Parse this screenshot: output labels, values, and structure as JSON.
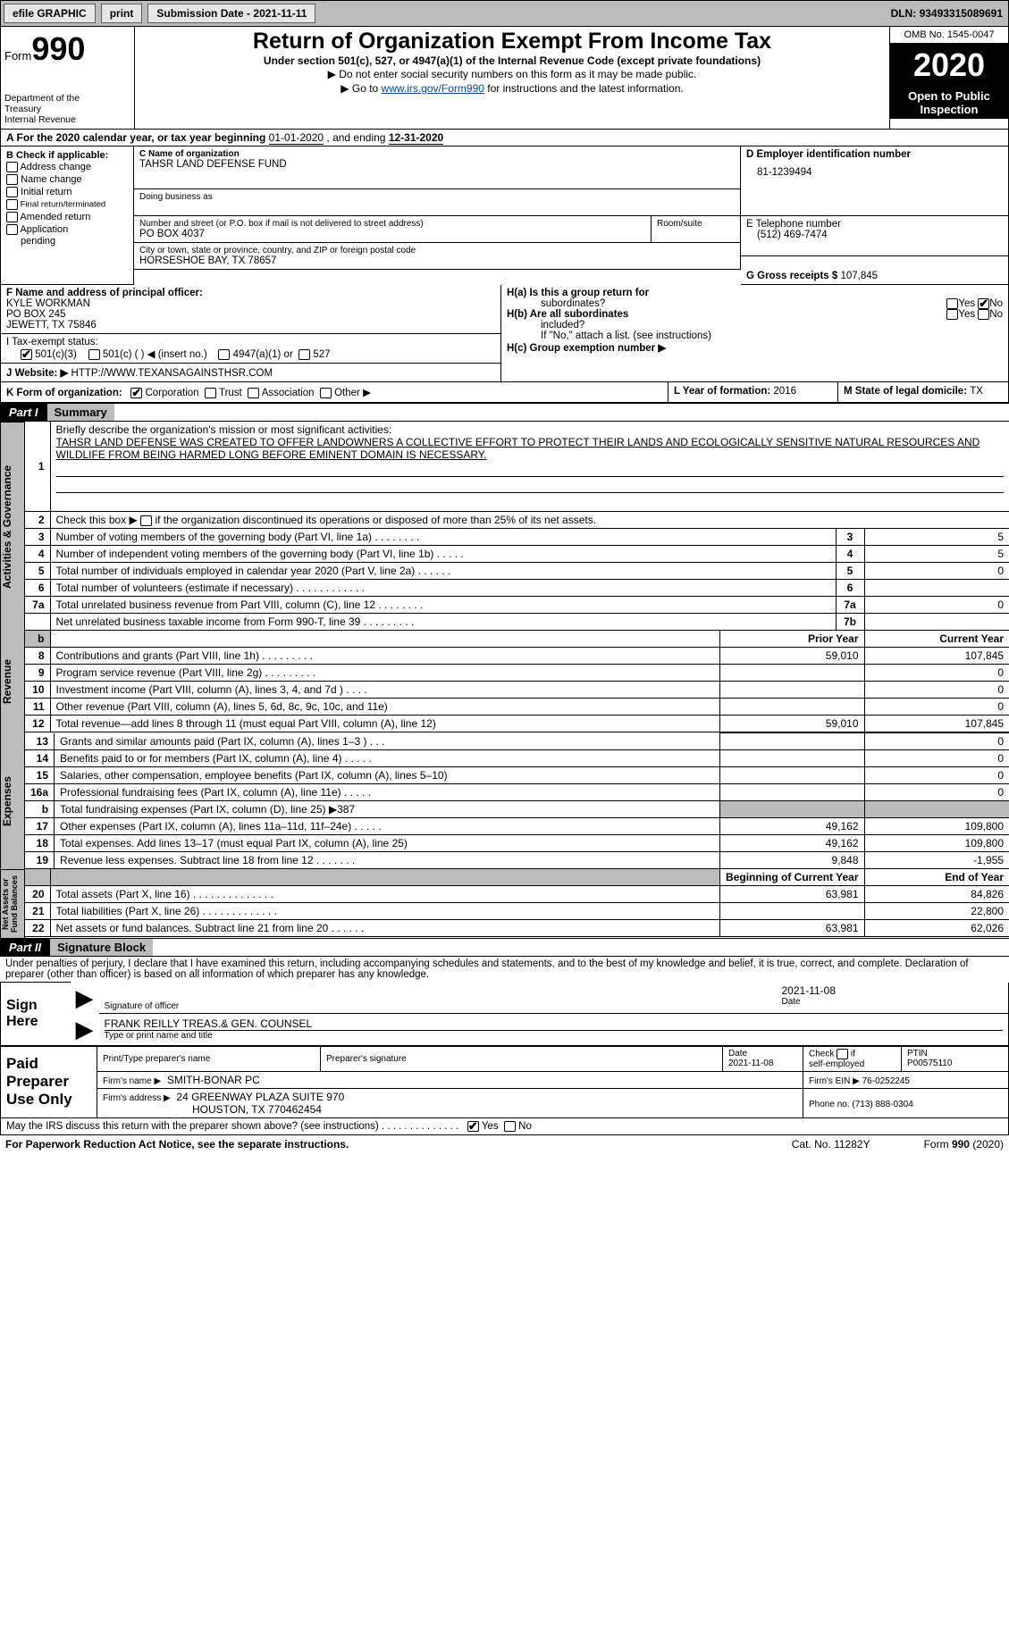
{
  "topbar": {
    "efile": "efile GRAPHIC",
    "print": "print",
    "subdate_lbl": "Submission Date - ",
    "subdate": "2021-11-11",
    "dln_lbl": "DLN: ",
    "dln": "93493315089691"
  },
  "header": {
    "form_pre": "Form",
    "form_num": "990",
    "dept1": "Department of the",
    "dept2": "Treasury",
    "dept3": "Internal Revenue",
    "title": "Return of Organization Exempt From Income Tax",
    "subtitle": "Under section 501(c), 527, or 4947(a)(1) of the Internal Revenue Code (except private foundations)",
    "note1": "▶ Do not enter social security numbers on this form as it may be made public.",
    "note2_pre": "▶ Go to ",
    "note2_link": "www.irs.gov/Form990",
    "note2_post": " for instructions and the latest information.",
    "omb": "OMB No. 1545-0047",
    "year": "2020",
    "open1": "Open to Public",
    "open2": "Inspection"
  },
  "period": {
    "text_a": "A   For the 2020 calendar year, or tax year beginning ",
    "beg": "01-01-2020",
    "mid": "   , and ending ",
    "end": "12-31-2020"
  },
  "secB": {
    "head": "B Check if applicable:",
    "c1": "Address change",
    "c2": "Name change",
    "c3": "Initial return",
    "c4": "Final return/terminated",
    "c5": "Amended return",
    "c6": "Application",
    "c7": "pending"
  },
  "secC": {
    "name_lbl": "C Name of organization",
    "name": "TAHSR LAND DEFENSE FUND",
    "dba_lbl": "Doing business as",
    "addr_lbl": "Number and street (or P.O. box if mail is not delivered to street address)",
    "room_lbl": "Room/suite",
    "addr": "PO BOX 4037",
    "city_lbl": "City or town, state or province, country, and ZIP or foreign postal code",
    "city": "HORSESHOE BAY, TX   78657"
  },
  "secD": {
    "lbl": "D Employer identification number",
    "val": "81-1239494"
  },
  "secE": {
    "lbl": "E Telephone number",
    "val": "(512) 469-7474"
  },
  "secG": {
    "lbl": "G Gross receipts $ ",
    "val": "107,845"
  },
  "secF": {
    "lbl": "F Name and address of principal officer:",
    "l1": "KYLE WORKMAN",
    "l2": "PO BOX 245",
    "l3": "JEWETT, TX   75846"
  },
  "secH": {
    "ha": "H(a)  Is this a group return for",
    "ha2": "subordinates?",
    "hb": "H(b)  Are all subordinates",
    "hb2": "included?",
    "hbn": "If \"No,\" attach a list. (see instructions)",
    "hc": "H(c)  Group exemption number ▶",
    "yes": "Yes",
    "no": "No"
  },
  "secI": {
    "lbl": "I     Tax-exempt status:",
    "o1": "501(c)(3)",
    "o2": "501(c) (   ) ◀ (insert no.)",
    "o3": "4947(a)(1) or",
    "o4": "527"
  },
  "secJ": {
    "lbl": "J     Website: ▶  ",
    "val": "HTTP://WWW.TEXANSAGAINSTHSR.COM"
  },
  "secK": {
    "lbl": "K Form of organization:",
    "o1": "Corporation",
    "o2": "Trust",
    "o3": "Association",
    "o4": "Other ▶"
  },
  "secL": {
    "lbl": "L Year of formation: ",
    "val": "2016"
  },
  "secM": {
    "lbl": "M State of legal domicile: ",
    "val": "TX"
  },
  "part1": {
    "bar": "Part I",
    "title": "Summary",
    "q1": "Briefly describe the organization's mission or most significant activities:",
    "q1v": "TAHSR LAND DEFENSE WAS CREATED TO OFFER LANDOWNERS A COLLECTIVE EFFORT TO PROTECT THEIR LANDS AND ECOLOGICALLY SENSITIVE NATURAL RESOURCES AND WILDLIFE FROM BEING HARMED LONG BEFORE EMINENT DOMAIN IS NECESSARY.",
    "q2": "Check this box ▶        if the organization discontinued its operations or disposed of more than 25% of its net assets.",
    "rows_gov": [
      {
        "n": "3",
        "t": "Number of voting members of the governing body (Part VI, line 1a)   .     .     .     .     .     .     .     .",
        "bn": "3",
        "v": "5"
      },
      {
        "n": "4",
        "t": "Number of independent voting members of the governing body (Part VI, line 1b)   .     .     .     .     .",
        "bn": "4",
        "v": "5"
      },
      {
        "n": "5",
        "t": "Total number of individuals employed in calendar year 2020 (Part V, line 2a)   .     .     .     .     .     .",
        "bn": "5",
        "v": "0"
      },
      {
        "n": "6",
        "t": "Total number of volunteers (estimate if necessary)   .     .     .     .     .     .     .     .     .     .     .     .",
        "bn": "6",
        "v": ""
      },
      {
        "n": "7a",
        "t": "Total unrelated business revenue from Part VIII, column (C), line 12   .     .     .     .     .     .     .     .",
        "bn": "7a",
        "v": "0"
      },
      {
        "n": "",
        "t": "Net unrelated business taxable income from Form 990-T, line 39   .     .     .     .     .     .     .     .     .",
        "bn": "7b",
        "v": ""
      }
    ],
    "hdr_prior": "Prior Year",
    "hdr_curr": "Current Year",
    "rows_rev": [
      {
        "n": "8",
        "t": "Contributions and grants (Part VIII, line 1h)   .     .     .     .     .     .     .     .     .",
        "p": "59,010",
        "c": "107,845"
      },
      {
        "n": "9",
        "t": "Program service revenue (Part VIII, line 2g)   .     .     .     .     .     .     .     .     .",
        "p": "",
        "c": "0"
      },
      {
        "n": "10",
        "t": "Investment income (Part VIII, column (A), lines 3, 4, and 7d )   .     .     .     .",
        "p": "",
        "c": "0"
      },
      {
        "n": "11",
        "t": "Other revenue (Part VIII, column (A), lines 5, 6d, 8c, 9c, 10c, and 11e)",
        "p": "",
        "c": "0"
      },
      {
        "n": "12",
        "t": "Total revenue—add lines 8 through 11 (must equal Part VIII, column (A), line 12)",
        "p": "59,010",
        "c": "107,845"
      }
    ],
    "rows_exp": [
      {
        "n": "13",
        "t": "Grants and similar amounts paid (Part IX, column (A), lines 1–3 )   .     .     .",
        "p": "",
        "c": "0"
      },
      {
        "n": "14",
        "t": "Benefits paid to or for members (Part IX, column (A), line 4)   .     .     .     .     .",
        "p": "",
        "c": "0"
      },
      {
        "n": "15",
        "t": "Salaries, other compensation, employee benefits (Part IX, column (A), lines 5–10)",
        "p": "",
        "c": "0"
      },
      {
        "n": "16a",
        "t": "Professional fundraising fees (Part IX, column (A), line 11e)   .     .     .     .     .",
        "p": "",
        "c": "0"
      },
      {
        "n": "b",
        "t": "Total fundraising expenses (Part IX, column (D), line 25) ▶387",
        "p": "SHADE",
        "c": "SHADE"
      },
      {
        "n": "17",
        "t": "Other expenses (Part IX, column (A), lines 11a–11d, 11f–24e)   .     .     .     .     .",
        "p": "49,162",
        "c": "109,800"
      },
      {
        "n": "18",
        "t": "Total expenses. Add lines 13–17 (must equal Part IX, column (A), line 25)",
        "p": "49,162",
        "c": "109,800"
      },
      {
        "n": "19",
        "t": "Revenue less expenses. Subtract line 18 from line 12   .     .     .     .     .     .     .",
        "p": "9,848",
        "c": "-1,955"
      }
    ],
    "hdr_beg": "Beginning of Current Year",
    "hdr_end": "End of Year",
    "rows_na": [
      {
        "n": "20",
        "t": "Total assets (Part X, line 16)   .     .     .     .     .     .     .     .     .     .     .     .     .     .",
        "p": "63,981",
        "c": "84,826"
      },
      {
        "n": "21",
        "t": "Total liabilities (Part X, line 26)   .     .     .     .     .     .     .     .     .     .     .     .     .",
        "p": "",
        "c": "22,800"
      },
      {
        "n": "22",
        "t": "Net assets or fund balances. Subtract line 21 from line 20   .     .     .     .     .     .",
        "p": "63,981",
        "c": "62,026"
      }
    ]
  },
  "part2": {
    "bar": "Part II",
    "title": "Signature Block",
    "decl": "Under penalties of perjury, I declare that I have examined this return, including accompanying schedules and statements, and to the best of my knowledge and belief, it is true, correct, and complete. Declaration of preparer (other than officer) is based on all information of which preparer has any knowledge."
  },
  "sign": {
    "here1": "Sign",
    "here2": "Here",
    "sigoff": "Signature of officer",
    "date": "Date",
    "datev": "2021-11-08",
    "name": "FRANK REILLY  TREAS.& GEN. COUNSEL",
    "type": "Type or print name and title"
  },
  "paid": {
    "h1": "Paid",
    "h2": "Preparer",
    "h3": "Use Only",
    "c1": "Print/Type preparer's name",
    "c2": "Preparer's signature",
    "c3": "Date",
    "c3v": "2021-11-08",
    "c4a": "Check",
    "c4b": "if",
    "c4c": "self-employed",
    "c5": "PTIN",
    "c5v": "P00575110",
    "f_lbl": "Firm's name     ▶",
    "f_val": "SMITH-BONAR PC",
    "fein_lbl": "Firm's EIN ▶ ",
    "fein_val": "76-0252245",
    "fa_lbl": "Firm's address ▶",
    "fa_val1": "24 GREENWAY PLAZA SUITE 970",
    "fa_val2": "HOUSTON, TX  770462454",
    "ph_lbl": "Phone no. ",
    "ph_val": "(713) 888-0304"
  },
  "footer": {
    "q": "May the IRS discuss this return with the preparer shown above? (see instructions)   .     .     .     .     .     .     .     .     .     .     .     .     .     .",
    "yes": "Yes",
    "no": "No",
    "pra": "For Paperwork Reduction Act Notice, see the separate instructions.",
    "cat": "Cat. No. 11282Y",
    "form": "Form 990 (2020)"
  },
  "vlabels": {
    "gov": "Activities & Governance",
    "rev": "Revenue",
    "exp": "Expenses",
    "na": "Net Assets or\nFund Balances"
  }
}
